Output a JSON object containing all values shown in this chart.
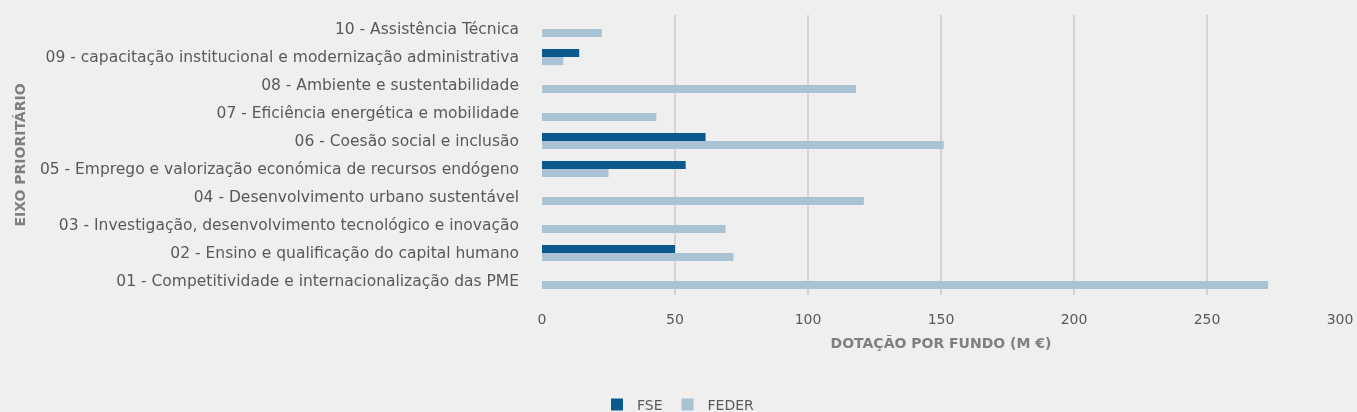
{
  "chart_data": {
    "type": "bar",
    "orientation": "horizontal",
    "xlabel": "DOTAÇÃO POR FUNDO (M €)",
    "ylabel": "EIXO PRIORITÁRIO",
    "categories": [
      "10 - Assistência Técnica",
      "09 - capacitação institucional e modernização administrativa",
      "08 - Ambiente e sustentabilidade",
      "07 - Eficiência energética e mobilidade",
      "06 - Coesão social e inclusão",
      "05 - Emprego e valorização económica de recursos endógeno",
      "04 - Desenvolvimento urbano sustentável",
      "03 - Investigação, desenvolvimento tecnológico e inovação",
      "02 - Ensino e qualificação do capital humano",
      "01 - Competitividade e internacionalização das PME"
    ],
    "series": [
      {
        "name": "FSE",
        "color": "#0b5a8e",
        "values": [
          null,
          14,
          null,
          null,
          61.5,
          54,
          null,
          null,
          50,
          null
        ]
      },
      {
        "name": "FEDER",
        "color": "#a9c3d4",
        "values": [
          22.5,
          8,
          118,
          43,
          151,
          25,
          121,
          69,
          72,
          273
        ]
      }
    ],
    "xlim": [
      0,
      300
    ],
    "xticks": [
      0,
      50,
      100,
      150,
      200,
      250,
      300
    ],
    "grid": "x",
    "legend": "bottom"
  }
}
